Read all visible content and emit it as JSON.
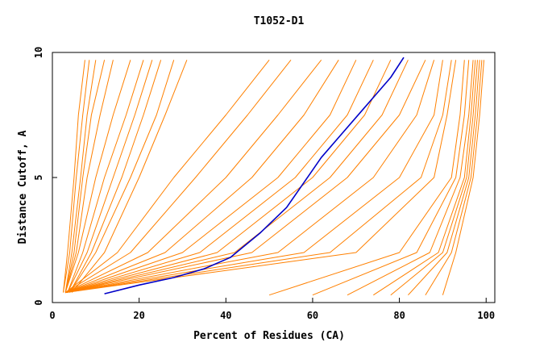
{
  "chart_data": {
    "type": "line",
    "title": "T1052-D1",
    "xlabel": "Percent of Residues (CA)",
    "ylabel": "Distance Cutoff, A",
    "xlim": [
      0,
      102
    ],
    "ylim": [
      0,
      10
    ],
    "xticks": [
      "0",
      "20",
      "40",
      "60",
      "80",
      "100"
    ],
    "xtick_values": [
      0,
      20,
      40,
      60,
      80,
      100
    ],
    "yticks": [
      "0",
      "5",
      "10"
    ],
    "ytick_values": [
      0,
      5,
      10
    ],
    "grid": false,
    "colors": {
      "models": "#ff8000",
      "highlight": "#0000c8",
      "axes": "#000000"
    },
    "highlight_series": {
      "x": [
        12,
        20,
        28,
        35,
        41,
        48,
        54,
        58,
        62,
        66,
        72,
        78,
        81
      ],
      "y": [
        0.35,
        0.7,
        1.0,
        1.35,
        1.8,
        2.8,
        3.8,
        4.8,
        5.8,
        6.6,
        7.8,
        9.0,
        9.8
      ]
    },
    "model_series": [
      {
        "x": [
          2.5,
          3.5,
          5,
          6,
          7.5
        ],
        "y": [
          0.4,
          2,
          5,
          7.5,
          9.7
        ]
      },
      {
        "x": [
          2.5,
          4,
          5.5,
          7,
          8.5
        ],
        "y": [
          0.4,
          2,
          5,
          7.5,
          9.7
        ]
      },
      {
        "x": [
          3,
          4.5,
          6.5,
          8,
          10
        ],
        "y": [
          0.4,
          2,
          5,
          7.5,
          9.7
        ]
      },
      {
        "x": [
          3,
          5,
          7,
          9,
          12
        ],
        "y": [
          0.4,
          2,
          5,
          7.5,
          9.7
        ]
      },
      {
        "x": [
          3,
          5.5,
          8,
          11,
          14
        ],
        "y": [
          0.4,
          2,
          5,
          7.5,
          9.7
        ]
      },
      {
        "x": [
          3,
          6,
          10,
          14,
          18
        ],
        "y": [
          0.4,
          2,
          5,
          7.5,
          9.7
        ]
      },
      {
        "x": [
          3.5,
          7,
          12,
          17,
          21
        ],
        "y": [
          0.4,
          2,
          5,
          7.5,
          9.7
        ]
      },
      {
        "x": [
          3.5,
          8,
          14,
          19,
          23
        ],
        "y": [
          0.4,
          2,
          5,
          7.5,
          9.7
        ]
      },
      {
        "x": [
          4,
          9,
          16,
          21,
          25
        ],
        "y": [
          0.4,
          2,
          5,
          7.5,
          9.7
        ]
      },
      {
        "x": [
          4,
          10,
          18,
          24,
          28
        ],
        "y": [
          0.4,
          2,
          5,
          7.5,
          9.7
        ]
      },
      {
        "x": [
          4.5,
          12,
          20,
          26,
          31
        ],
        "y": [
          0.4,
          2,
          5,
          7.5,
          9.7
        ]
      },
      {
        "x": [
          3,
          15,
          28,
          40,
          50
        ],
        "y": [
          0.4,
          2,
          5,
          7.5,
          9.7
        ]
      },
      {
        "x": [
          3,
          18,
          33,
          45,
          55
        ],
        "y": [
          0.4,
          2,
          5,
          7.5,
          9.7
        ]
      },
      {
        "x": [
          3,
          22,
          40,
          52,
          62
        ],
        "y": [
          0.4,
          2,
          5,
          7.5,
          9.7
        ]
      },
      {
        "x": [
          3,
          26,
          46,
          58,
          66
        ],
        "y": [
          0.4,
          2,
          5,
          7.5,
          9.7
        ]
      },
      {
        "x": [
          3,
          30,
          52,
          64,
          70
        ],
        "y": [
          0.4,
          2,
          5,
          7.5,
          9.7
        ]
      },
      {
        "x": [
          3,
          34,
          56,
          68,
          74
        ],
        "y": [
          0.4,
          2,
          5,
          7.5,
          9.7
        ]
      },
      {
        "x": [
          3,
          38,
          60,
          72,
          78
        ],
        "y": [
          0.4,
          2,
          5,
          7.5,
          9.7
        ]
      },
      {
        "x": [
          3,
          42,
          64,
          76,
          82
        ],
        "y": [
          0.4,
          2,
          5,
          7.5,
          9.7
        ]
      },
      {
        "x": [
          3,
          46,
          68,
          80,
          86
        ],
        "y": [
          0.4,
          2,
          5,
          7.5,
          9.7
        ]
      },
      {
        "x": [
          3,
          52,
          74,
          84,
          88
        ],
        "y": [
          0.4,
          2,
          5,
          7.5,
          9.7
        ]
      },
      {
        "x": [
          3,
          58,
          80,
          88,
          90
        ],
        "y": [
          0.4,
          2,
          5,
          7.5,
          9.7
        ]
      },
      {
        "x": [
          3,
          64,
          85,
          90,
          92
        ],
        "y": [
          0.4,
          2,
          5,
          7.5,
          9.7
        ]
      },
      {
        "x": [
          3,
          70,
          88,
          91,
          93
        ],
        "y": [
          0.4,
          2,
          5,
          7.5,
          9.7
        ]
      },
      {
        "x": [
          50,
          80,
          92,
          94,
          95
        ],
        "y": [
          0.3,
          2,
          5,
          7.5,
          9.7
        ]
      },
      {
        "x": [
          60,
          84,
          93,
          95,
          96
        ],
        "y": [
          0.3,
          2,
          5,
          7.5,
          9.7
        ]
      },
      {
        "x": [
          68,
          87,
          94,
          96,
          97
        ],
        "y": [
          0.3,
          2,
          5,
          7.5,
          9.7
        ]
      },
      {
        "x": [
          74,
          89,
          95,
          96.5,
          97.5
        ],
        "y": [
          0.3,
          2,
          5,
          7.5,
          9.7
        ]
      },
      {
        "x": [
          78,
          90,
          95.5,
          97,
          98
        ],
        "y": [
          0.3,
          2,
          5,
          7.5,
          9.7
        ]
      },
      {
        "x": [
          82,
          91,
          96,
          97.5,
          98.5
        ],
        "y": [
          0.3,
          2,
          5,
          7.5,
          9.7
        ]
      },
      {
        "x": [
          86,
          92,
          96.5,
          98,
          99
        ],
        "y": [
          0.3,
          2,
          5,
          7.5,
          9.7
        ]
      },
      {
        "x": [
          90,
          93,
          97,
          98.5,
          99.5
        ],
        "y": [
          0.3,
          2,
          5,
          7.5,
          9.7
        ]
      }
    ]
  }
}
